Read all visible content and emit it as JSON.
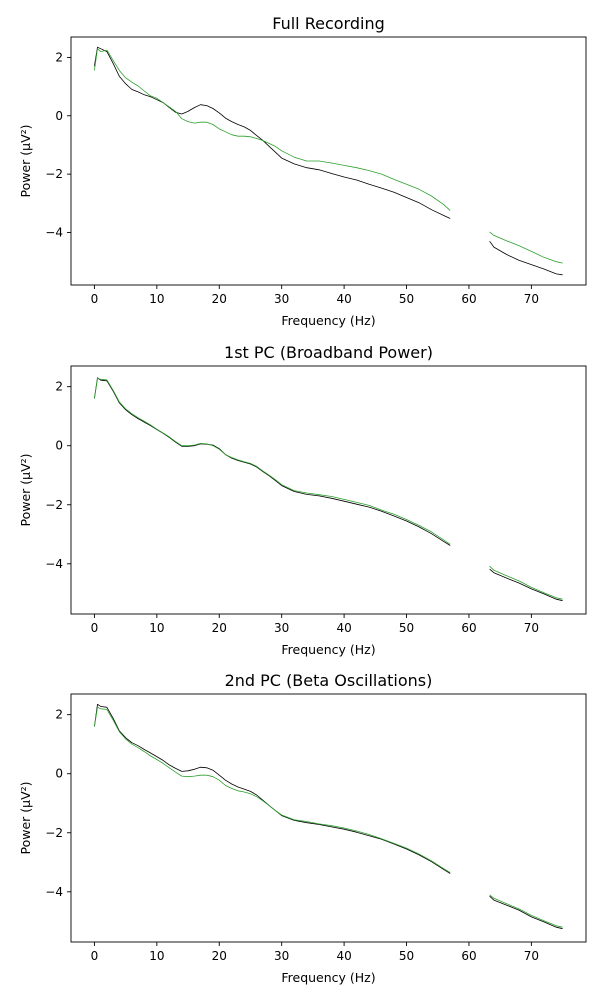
{
  "colors": {
    "series_a": "#000000",
    "series_b": "#2ca02c"
  },
  "chart_data": [
    {
      "type": "line",
      "title": "Full Recording",
      "xlabel": "Frequency (Hz)",
      "ylabel": "Power (μV²)",
      "xlim": [
        -3.75,
        78.75
      ],
      "ylim": [
        -5.8,
        2.7
      ],
      "xticks": [
        0,
        10,
        20,
        30,
        40,
        50,
        60,
        70
      ],
      "yticks": [
        2,
        0,
        -2,
        -4
      ],
      "grid": false,
      "gap": [
        57,
        63.3
      ],
      "series": [
        {
          "color": "#000000",
          "x": [
            0,
            0.5,
            1,
            2,
            3,
            4,
            5,
            6,
            7,
            8,
            9,
            10,
            11,
            12,
            13,
            14,
            15,
            16,
            17,
            18,
            19,
            20,
            21,
            22,
            23,
            24,
            25,
            26,
            27,
            28,
            29,
            30,
            32,
            34,
            36,
            38,
            40,
            42,
            44,
            46,
            48,
            50,
            52,
            54,
            56,
            57,
            63.3,
            64,
            66,
            68,
            70,
            72,
            74,
            75
          ],
          "y": [
            1.7,
            2.35,
            2.3,
            2.2,
            1.8,
            1.35,
            1.1,
            0.9,
            0.82,
            0.72,
            0.65,
            0.55,
            0.45,
            0.28,
            0.12,
            0.06,
            0.15,
            0.28,
            0.38,
            0.35,
            0.25,
            0.1,
            -0.08,
            -0.2,
            -0.3,
            -0.38,
            -0.5,
            -0.68,
            -0.85,
            -1.05,
            -1.25,
            -1.45,
            -1.65,
            -1.78,
            -1.85,
            -1.98,
            -2.1,
            -2.2,
            -2.35,
            -2.48,
            -2.62,
            -2.8,
            -2.98,
            -3.22,
            -3.42,
            -3.52,
            -4.3,
            -4.5,
            -4.75,
            -4.95,
            -5.1,
            -5.25,
            -5.42,
            -5.45
          ]
        },
        {
          "color": "#2ca02c",
          "x": [
            0,
            0.5,
            1,
            2,
            3,
            4,
            5,
            6,
            7,
            8,
            9,
            10,
            11,
            12,
            13,
            14,
            15,
            16,
            17,
            18,
            19,
            20,
            21,
            22,
            23,
            24,
            25,
            26,
            27,
            28,
            29,
            30,
            32,
            34,
            36,
            38,
            40,
            42,
            44,
            46,
            48,
            50,
            52,
            54,
            56,
            57,
            63.3,
            64,
            66,
            68,
            70,
            72,
            74,
            75
          ],
          "y": [
            1.55,
            2.3,
            2.2,
            2.25,
            1.9,
            1.55,
            1.3,
            1.15,
            1.02,
            0.85,
            0.68,
            0.6,
            0.45,
            0.3,
            0.15,
            -0.1,
            -0.2,
            -0.25,
            -0.22,
            -0.22,
            -0.3,
            -0.45,
            -0.55,
            -0.65,
            -0.7,
            -0.7,
            -0.72,
            -0.78,
            -0.85,
            -0.95,
            -1.05,
            -1.2,
            -1.42,
            -1.55,
            -1.55,
            -1.62,
            -1.7,
            -1.78,
            -1.88,
            -2.0,
            -2.18,
            -2.35,
            -2.52,
            -2.75,
            -3.05,
            -3.25,
            -3.98,
            -4.1,
            -4.28,
            -4.45,
            -4.65,
            -4.85,
            -5.0,
            -5.05
          ]
        }
      ]
    },
    {
      "type": "line",
      "title": "1st PC (Broadband Power)",
      "xlabel": "Frequency (Hz)",
      "ylabel": "Power (μV²)",
      "xlim": [
        -3.75,
        78.75
      ],
      "ylim": [
        -5.7,
        2.7
      ],
      "xticks": [
        0,
        10,
        20,
        30,
        40,
        50,
        60,
        70
      ],
      "yticks": [
        2,
        0,
        -2,
        -4
      ],
      "grid": false,
      "gap": [
        57,
        63.3
      ],
      "series": [
        {
          "color": "#000000",
          "x": [
            0,
            0.5,
            1,
            2,
            3,
            4,
            5,
            6,
            7,
            8,
            9,
            10,
            11,
            12,
            13,
            14,
            15,
            16,
            17,
            18,
            19,
            20,
            21,
            22,
            23,
            24,
            25,
            26,
            27,
            28,
            29,
            30,
            32,
            34,
            36,
            38,
            40,
            42,
            44,
            46,
            48,
            50,
            52,
            54,
            56,
            57,
            63.3,
            64,
            66,
            68,
            70,
            72,
            74,
            75
          ],
          "y": [
            1.6,
            2.3,
            2.22,
            2.2,
            1.85,
            1.45,
            1.22,
            1.05,
            0.92,
            0.8,
            0.68,
            0.55,
            0.42,
            0.28,
            0.12,
            -0.02,
            -0.02,
            0.0,
            0.06,
            0.05,
            0.02,
            -0.1,
            -0.3,
            -0.42,
            -0.5,
            -0.56,
            -0.62,
            -0.72,
            -0.88,
            -1.02,
            -1.18,
            -1.35,
            -1.55,
            -1.65,
            -1.7,
            -1.78,
            -1.88,
            -1.98,
            -2.08,
            -2.22,
            -2.38,
            -2.55,
            -2.75,
            -2.98,
            -3.25,
            -3.38,
            -4.18,
            -4.3,
            -4.48,
            -4.65,
            -4.85,
            -5.02,
            -5.2,
            -5.25
          ]
        },
        {
          "color": "#2ca02c",
          "x": [
            0,
            0.5,
            1,
            2,
            3,
            4,
            5,
            6,
            7,
            8,
            9,
            10,
            11,
            12,
            13,
            14,
            15,
            16,
            17,
            18,
            19,
            20,
            21,
            22,
            23,
            24,
            25,
            26,
            27,
            28,
            29,
            30,
            32,
            34,
            36,
            38,
            40,
            42,
            44,
            46,
            48,
            50,
            52,
            54,
            56,
            57,
            63.3,
            64,
            66,
            68,
            70,
            72,
            74,
            75
          ],
          "y": [
            1.6,
            2.28,
            2.25,
            2.23,
            1.88,
            1.48,
            1.25,
            1.08,
            0.95,
            0.83,
            0.7,
            0.56,
            0.43,
            0.3,
            0.14,
            0.0,
            0.0,
            0.02,
            0.08,
            0.06,
            0.0,
            -0.12,
            -0.3,
            -0.4,
            -0.48,
            -0.54,
            -0.6,
            -0.7,
            -0.86,
            -1.0,
            -1.15,
            -1.32,
            -1.52,
            -1.6,
            -1.66,
            -1.72,
            -1.82,
            -1.92,
            -2.02,
            -2.18,
            -2.32,
            -2.5,
            -2.7,
            -2.92,
            -3.2,
            -3.34,
            -4.08,
            -4.22,
            -4.4,
            -4.58,
            -4.8,
            -4.98,
            -5.15,
            -5.2
          ]
        }
      ]
    },
    {
      "type": "line",
      "title": "2nd PC (Beta Oscillations)",
      "xlabel": "Frequency (Hz)",
      "ylabel": "Power (μV²)",
      "xlim": [
        -3.75,
        78.75
      ],
      "ylim": [
        -5.7,
        2.7
      ],
      "xticks": [
        0,
        10,
        20,
        30,
        40,
        50,
        60,
        70
      ],
      "yticks": [
        2,
        0,
        -2,
        -4
      ],
      "grid": false,
      "gap": [
        57,
        63.3
      ],
      "series": [
        {
          "color": "#000000",
          "x": [
            0,
            0.5,
            1,
            2,
            3,
            4,
            5,
            6,
            7,
            8,
            9,
            10,
            11,
            12,
            13,
            14,
            15,
            16,
            17,
            18,
            19,
            20,
            21,
            22,
            23,
            24,
            25,
            26,
            27,
            28,
            29,
            30,
            32,
            34,
            36,
            38,
            40,
            42,
            44,
            46,
            48,
            50,
            52,
            54,
            56,
            57,
            63.3,
            64,
            66,
            68,
            70,
            72,
            74,
            75
          ],
          "y": [
            1.6,
            2.35,
            2.28,
            2.25,
            1.88,
            1.45,
            1.22,
            1.05,
            0.95,
            0.82,
            0.7,
            0.58,
            0.45,
            0.3,
            0.18,
            0.08,
            0.1,
            0.15,
            0.22,
            0.2,
            0.12,
            -0.05,
            -0.22,
            -0.35,
            -0.45,
            -0.52,
            -0.6,
            -0.72,
            -0.9,
            -1.08,
            -1.25,
            -1.42,
            -1.58,
            -1.66,
            -1.72,
            -1.8,
            -1.88,
            -1.98,
            -2.1,
            -2.22,
            -2.38,
            -2.55,
            -2.75,
            -2.98,
            -3.25,
            -3.38,
            -4.15,
            -4.28,
            -4.45,
            -4.62,
            -4.85,
            -5.02,
            -5.2,
            -5.25
          ]
        },
        {
          "color": "#2ca02c",
          "x": [
            0,
            0.5,
            1,
            2,
            3,
            4,
            5,
            6,
            7,
            8,
            9,
            10,
            11,
            12,
            13,
            14,
            15,
            16,
            17,
            18,
            19,
            20,
            21,
            22,
            23,
            24,
            25,
            26,
            27,
            28,
            29,
            30,
            32,
            34,
            36,
            38,
            40,
            42,
            44,
            46,
            48,
            50,
            52,
            54,
            56,
            57,
            63.3,
            64,
            66,
            68,
            70,
            72,
            74,
            75
          ],
          "y": [
            1.6,
            2.25,
            2.2,
            2.18,
            1.82,
            1.42,
            1.18,
            1.0,
            0.88,
            0.75,
            0.6,
            0.48,
            0.35,
            0.2,
            0.05,
            -0.08,
            -0.1,
            -0.08,
            -0.05,
            -0.05,
            -0.1,
            -0.22,
            -0.4,
            -0.5,
            -0.58,
            -0.62,
            -0.68,
            -0.78,
            -0.92,
            -1.08,
            -1.25,
            -1.4,
            -1.56,
            -1.62,
            -1.7,
            -1.76,
            -1.84,
            -1.94,
            -2.06,
            -2.2,
            -2.36,
            -2.52,
            -2.72,
            -2.95,
            -3.22,
            -3.35,
            -4.1,
            -4.22,
            -4.4,
            -4.58,
            -4.8,
            -4.98,
            -5.15,
            -5.2
          ]
        }
      ]
    }
  ]
}
